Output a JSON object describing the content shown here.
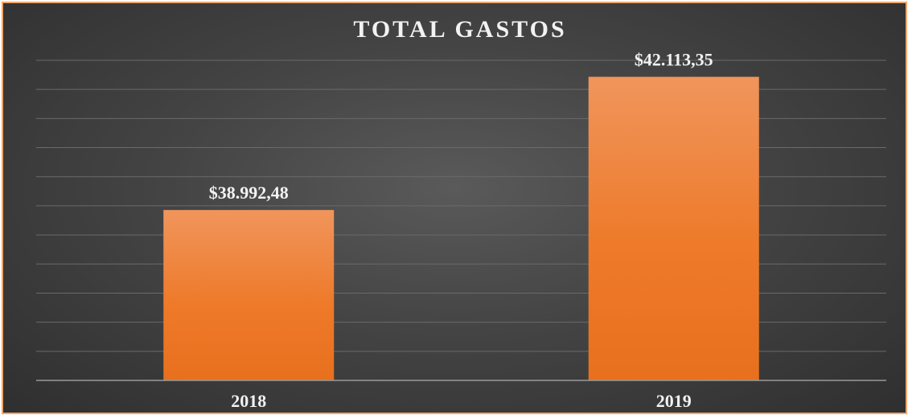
{
  "chart_data": {
    "type": "bar",
    "title": "TOTAL GASTOS",
    "categories": [
      "2018",
      "2019"
    ],
    "values": [
      38992.48,
      42113.35
    ],
    "value_labels": [
      "$38.992,48",
      "$42.113,35"
    ],
    "ylim": [
      35000,
      42500
    ],
    "grid": true,
    "colors": {
      "bar": "#ee7a2a",
      "bar_top": "#f09a62",
      "gridline": "#6a6a6a",
      "baseline": "#9a9a9a",
      "frame": "#f2a66a"
    }
  }
}
